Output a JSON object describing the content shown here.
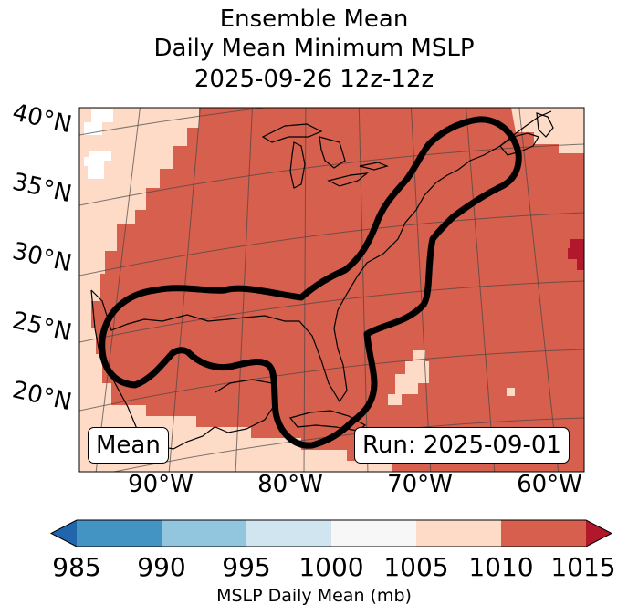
{
  "title": {
    "line1": "Ensemble Mean",
    "line2": "Daily Mean Minimum MSLP",
    "line3": "2025-09-26 12z-12z"
  },
  "map": {
    "projection": "lambert-conformal",
    "lat_labels": [
      "40°N",
      "35°N",
      "30°N",
      "25°N",
      "20°N"
    ],
    "lon_labels": [
      "90°W",
      "80°W",
      "70°W",
      "60°W"
    ],
    "field_colors": {
      "background_1005_1010": "#fddbc7",
      "main_1010_1015": "#d6604d",
      "high_over_1015": "#b2182b",
      "missing": "#ffffff"
    },
    "outline_color": "#000000",
    "mean_label": "Mean",
    "run_label": "Run: 2025-09-01"
  },
  "colorbar": {
    "label": "MSLP Daily Mean (mb)",
    "ticks": [
      "985",
      "990",
      "995",
      "1000",
      "1005",
      "1010",
      "1015"
    ],
    "under_color": "#2166ac",
    "over_color": "#b2182b",
    "bins": [
      {
        "range": "985-990",
        "color": "#4393c3"
      },
      {
        "range": "990-995",
        "color": "#92c5de"
      },
      {
        "range": "995-1000",
        "color": "#d1e5f0"
      },
      {
        "range": "1000-1005",
        "color": "#f7f7f7"
      },
      {
        "range": "1005-1010",
        "color": "#fddbc7"
      },
      {
        "range": "1010-1015",
        "color": "#d6604d"
      }
    ]
  }
}
